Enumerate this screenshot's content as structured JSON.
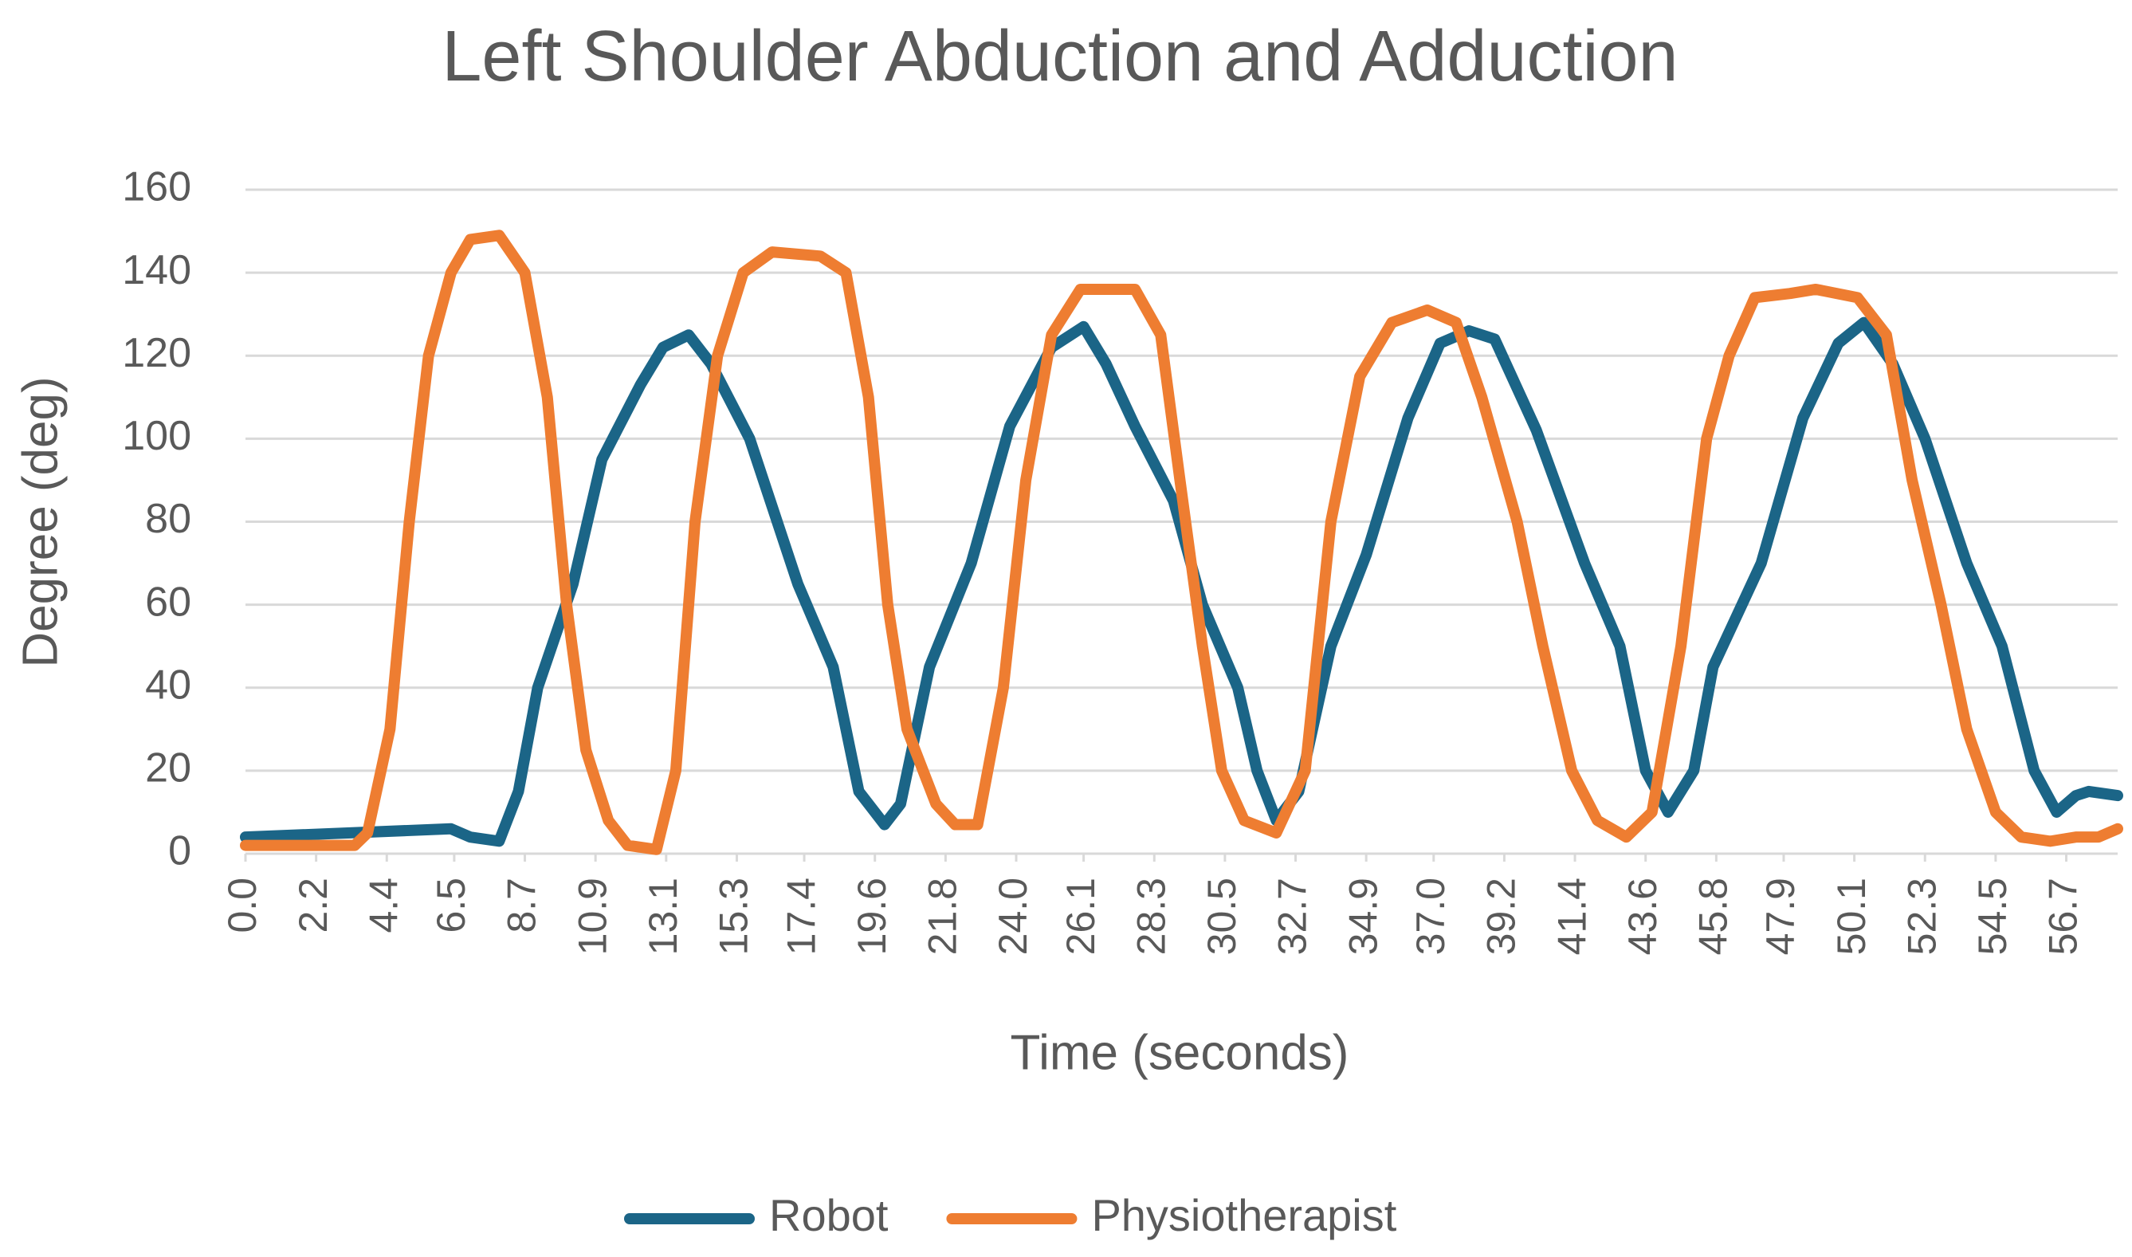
{
  "chart_data": {
    "type": "line",
    "title": "Left Shoulder Abduction and Adduction",
    "x_label": "Time (seconds)",
    "y_label": "Degree (deg)",
    "xlim": [
      0,
      58.3
    ],
    "ylim": [
      0,
      160
    ],
    "yticks": [
      0,
      20,
      40,
      60,
      80,
      100,
      120,
      140,
      160
    ],
    "xticks": [
      {
        "value": 0,
        "label": "0.0"
      },
      2.2,
      4.4,
      6.5,
      8.7,
      10.9,
      13.1,
      15.3,
      17.4,
      19.6,
      21.8,
      {
        "value": 24,
        "label": "24.0"
      },
      26.1,
      28.3,
      30.5,
      32.7,
      34.9,
      {
        "value": 37,
        "label": "37.0"
      },
      39.2,
      41.4,
      43.6,
      45.8,
      47.9,
      50.1,
      52.3,
      54.5,
      56.7
    ],
    "grid": true,
    "legend": "bottom",
    "series": [
      {
        "name": "Robot",
        "color": "#1b6587",
        "x": [
          0,
          6.4,
          7.0,
          7.9,
          8.5,
          9.1,
          10.2,
          11.1,
          12.3,
          13.0,
          13.8,
          14.5,
          15.7,
          17.2,
          18.3,
          19.1,
          19.9,
          20.4,
          21.3,
          22.6,
          23.8,
          25.1,
          26.1,
          26.8,
          27.7,
          28.9,
          29.8,
          30.9,
          31.5,
          32.1,
          32.8,
          33.8,
          34.9,
          36.2,
          37.2,
          38.1,
          38.9,
          40.2,
          41.7,
          42.8,
          43.6,
          44.3,
          45.1,
          45.7,
          47.2,
          48.5,
          49.6,
          50.4,
          51.3,
          52.3,
          53.6,
          54.7,
          55.7,
          56.4,
          57.0,
          57.4,
          58.3
        ],
        "values": [
          4,
          6,
          4,
          3,
          15,
          40,
          65,
          95,
          113,
          122,
          125,
          118,
          100,
          65,
          45,
          15,
          7,
          12,
          45,
          70,
          103,
          122,
          127,
          118,
          103,
          85,
          60,
          40,
          20,
          8,
          15,
          50,
          72,
          105,
          123,
          126,
          124,
          102,
          70,
          50,
          20,
          10,
          20,
          45,
          70,
          105,
          123,
          128,
          118,
          100,
          70,
          50,
          20,
          10,
          14,
          15,
          14
        ]
      },
      {
        "name": "Physiotherapist",
        "color": "#ee7d31",
        "x": [
          0,
          3.4,
          3.8,
          4.5,
          5.1,
          5.7,
          6.4,
          7.0,
          7.9,
          8.7,
          9.4,
          10.0,
          10.6,
          11.3,
          11.9,
          12.8,
          13.4,
          14.0,
          14.7,
          15.5,
          16.4,
          17.9,
          18.7,
          19.4,
          20.0,
          20.6,
          21.5,
          22.1,
          22.8,
          23.6,
          24.3,
          25.1,
          26.0,
          27.7,
          28.5,
          29.1,
          29.8,
          30.4,
          31.1,
          32.1,
          33.0,
          33.8,
          34.7,
          35.7,
          36.8,
          37.7,
          38.5,
          39.6,
          40.4,
          41.3,
          42.1,
          43.0,
          43.8,
          44.7,
          45.5,
          46.2,
          47.0,
          48.1,
          48.9,
          50.2,
          51.1,
          51.9,
          52.8,
          53.6,
          54.5,
          55.3,
          56.2,
          57.0,
          57.7,
          58.3
        ],
        "values": [
          2,
          2,
          5,
          30,
          80,
          120,
          140,
          148,
          149,
          140,
          110,
          60,
          25,
          8,
          2,
          1,
          20,
          80,
          120,
          140,
          145,
          144,
          140,
          110,
          60,
          30,
          12,
          7,
          7,
          40,
          90,
          125,
          136,
          136,
          125,
          90,
          50,
          20,
          8,
          5,
          20,
          80,
          115,
          128,
          131,
          128,
          110,
          80,
          50,
          20,
          8,
          4,
          10,
          50,
          100,
          120,
          134,
          135,
          136,
          134,
          125,
          90,
          60,
          30,
          10,
          4,
          3,
          4,
          4,
          6
        ]
      }
    ]
  }
}
